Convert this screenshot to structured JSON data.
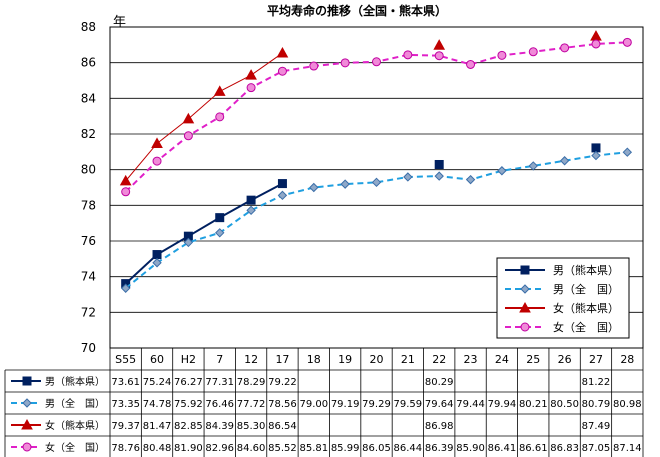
{
  "chart_data": {
    "type": "line",
    "title": "平均寿命の推移（全国・熊本県）",
    "ylabel": "年",
    "ylim": [
      70,
      88
    ],
    "yticks": [
      70,
      72,
      74,
      76,
      78,
      80,
      82,
      84,
      86,
      88
    ],
    "grid": true,
    "legend_position": "bottom-right",
    "categories": [
      "S55",
      "60",
      "H2",
      "7",
      "12",
      "17",
      "18",
      "19",
      "20",
      "21",
      "22",
      "23",
      "24",
      "25",
      "26",
      "27",
      "28"
    ],
    "series": [
      {
        "name": "男（熊本県）",
        "color": "#002060",
        "line_style": "solid",
        "marker": "square",
        "values": [
          73.61,
          75.24,
          76.27,
          77.31,
          78.29,
          79.22,
          null,
          null,
          null,
          null,
          80.29,
          null,
          null,
          null,
          null,
          81.22,
          null
        ],
        "labels": [
          "73.61",
          "75.24",
          "76.27",
          "77.31",
          "78.29",
          "79.22",
          "",
          "",
          "",
          "",
          "80.29",
          "",
          "",
          "",
          "",
          "81.22",
          ""
        ]
      },
      {
        "name": "男（全　国）",
        "color": "#1F9FE0",
        "line_style": "dashed",
        "marker": "diamond",
        "values": [
          73.35,
          74.78,
          75.92,
          76.46,
          77.72,
          78.56,
          79.0,
          79.19,
          79.29,
          79.59,
          79.64,
          79.44,
          79.94,
          80.21,
          80.5,
          80.79,
          80.98
        ],
        "labels": [
          "73.35",
          "74.78",
          "75.92",
          "76.46",
          "77.72",
          "78.56",
          "79.00",
          "79.19",
          "79.29",
          "79.59",
          "79.64",
          "79.44",
          "79.94",
          "80.21",
          "80.50",
          "80.79",
          "80.98"
        ]
      },
      {
        "name": "女（熊本県）",
        "color": "#C00000",
        "line_style": "solid",
        "marker": "triangle",
        "values": [
          79.37,
          81.47,
          82.85,
          84.39,
          85.3,
          86.54,
          null,
          null,
          null,
          null,
          86.98,
          null,
          null,
          null,
          null,
          87.49,
          null
        ],
        "labels": [
          "79.37",
          "81.47",
          "82.85",
          "84.39",
          "85.30",
          "86.54",
          "",
          "",
          "",
          "",
          "86.98",
          "",
          "",
          "",
          "",
          "87.49",
          ""
        ]
      },
      {
        "name": "女（全　国）",
        "color": "#E020C8",
        "line_style": "dashed",
        "marker": "circle",
        "values": [
          78.76,
          80.48,
          81.9,
          82.96,
          84.6,
          85.52,
          85.81,
          85.99,
          86.05,
          86.44,
          86.39,
          85.9,
          86.41,
          86.61,
          86.83,
          87.05,
          87.14
        ],
        "labels": [
          "78.76",
          "80.48",
          "81.90",
          "82.96",
          "84.60",
          "85.52",
          "85.81",
          "85.99",
          "86.05",
          "86.44",
          "86.39",
          "85.90",
          "86.41",
          "86.61",
          "86.83",
          "87.05",
          "87.14"
        ]
      }
    ]
  }
}
